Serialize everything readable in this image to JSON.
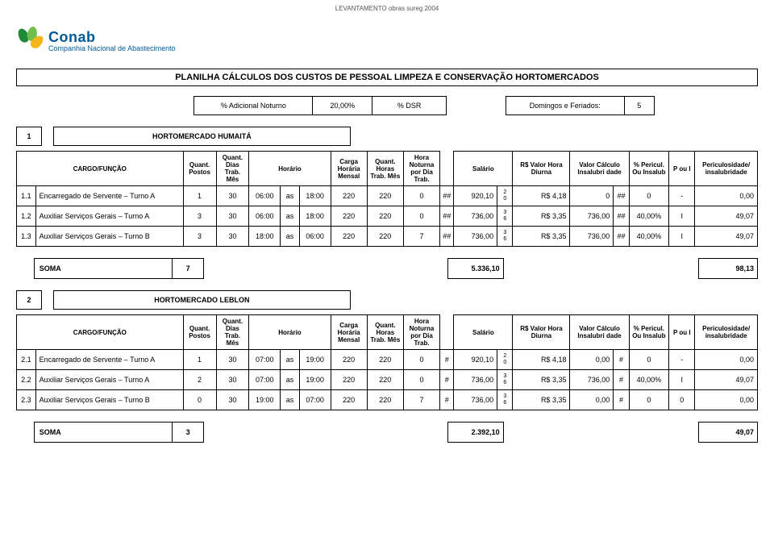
{
  "top_header": "LEVANTAMENTO obras sureg 2004",
  "brand": {
    "name": "Conab",
    "sub": "Companhia Nacional de Abastecimento"
  },
  "title": "PLANILHA CÁLCULOS DOS CUSTOS DE PESSOAL LIMPEZA E CONSERVAÇÃO HORTOMERCADOS",
  "meta": {
    "adicional_noturno_label": "% Adicional Noturno",
    "adicional_noturno_value": "20,00%",
    "dsr_label": "% DSR",
    "feriados_label": "Domingos e Feriados:",
    "feriados_value": "5"
  },
  "headers": {
    "cargo": "CARGO/FUNÇÃO",
    "postos": "Quant. Postos",
    "dias": "Quant. Dias Trab. Mês",
    "horario": "Horário",
    "carga": "Carga Horária Mensal",
    "horas": "Quant. Horas Trab. Mês",
    "noturna": "Hora Noturna por Dia Trab.",
    "salario": "Salário",
    "valor_hora": "R$ Valor Hora Diurna",
    "calc_insal": "Valor Cálculo Insalubri dade",
    "pct_insal": "% Pericul. Ou Insalub",
    "poui": "P ou I",
    "peric": "Periculosidade/ insalubridade"
  },
  "blocks": [
    {
      "idx": "1",
      "name": "HORTOMERCADO HUMAITÁ",
      "rows": [
        {
          "num": "1.1",
          "cargo": "Encarregado de Servente – Turno A",
          "postos": "1",
          "dias": "30",
          "h1": "06:00",
          "as": "as",
          "h2": "18:00",
          "carga": "220",
          "horas": "220",
          "noturna": "0",
          "mark1": "##",
          "salario": "920,10",
          "frac": "2 0",
          "vh": "R$ 4,18",
          "calc": "0",
          "mark2": "##",
          "pct": "0",
          "poui": "-",
          "peric": "0,00"
        },
        {
          "num": "1.2",
          "cargo": "Auxiliar Serviços Gerais – Turno A",
          "postos": "3",
          "dias": "30",
          "h1": "06:00",
          "as": "as",
          "h2": "18:00",
          "carga": "220",
          "horas": "220",
          "noturna": "0",
          "mark1": "##",
          "salario": "736,00",
          "frac": "3 6",
          "vh": "R$ 3,35",
          "calc": "736,00",
          "mark2": "##",
          "pct": "40,00%",
          "poui": "I",
          "peric": "49,07"
        },
        {
          "num": "1.3",
          "cargo": "Auxiliar Serviços Gerais – Turno B",
          "postos": "3",
          "dias": "30",
          "h1": "18:00",
          "as": "as",
          "h2": "06:00",
          "carga": "220",
          "horas": "220",
          "noturna": "7",
          "mark1": "##",
          "salario": "736,00",
          "frac": "3 6",
          "vh": "R$ 3,35",
          "calc": "736,00",
          "mark2": "##",
          "pct": "40,00%",
          "poui": "I",
          "peric": "49,07"
        }
      ],
      "soma": {
        "label": "SOMA",
        "postos": "7",
        "salario": "5.336,10",
        "peric": "98,13"
      }
    },
    {
      "idx": "2",
      "name": "HORTOMERCADO LEBLON",
      "rows": [
        {
          "num": "2.1",
          "cargo": "Encarregado de Servente – Turno A",
          "postos": "1",
          "dias": "30",
          "h1": "07:00",
          "as": "as",
          "h2": "19:00",
          "carga": "220",
          "horas": "220",
          "noturna": "0",
          "mark1": "#",
          "salario": "920,10",
          "frac": "2 0",
          "vh": "R$ 4,18",
          "calc": "0,00",
          "mark2": "#",
          "pct": "0",
          "poui": "-",
          "peric": "0,00"
        },
        {
          "num": "2.2",
          "cargo": "Auxiliar Serviços Gerais – Turno A",
          "postos": "2",
          "dias": "30",
          "h1": "07:00",
          "as": "as",
          "h2": "19:00",
          "carga": "220",
          "horas": "220",
          "noturna": "0",
          "mark1": "#",
          "salario": "736,00",
          "frac": "3 6",
          "vh": "R$ 3,35",
          "calc": "736,00",
          "mark2": "#",
          "pct": "40,00%",
          "poui": "I",
          "peric": "49,07"
        },
        {
          "num": "2.3",
          "cargo": "Auxiliar Serviços Gerais – Turno B",
          "postos": "0",
          "dias": "30",
          "h1": "19:00",
          "as": "as",
          "h2": "07:00",
          "carga": "220",
          "horas": "220",
          "noturna": "7",
          "mark1": "#",
          "salario": "736,00",
          "frac": "3 6",
          "vh": "R$ 3,35",
          "calc": "0,00",
          "mark2": "#",
          "pct": "0",
          "poui": "0",
          "peric": "0,00"
        }
      ],
      "soma": {
        "label": "SOMA",
        "postos": "3",
        "salario": "2.392,10",
        "peric": "49,07"
      }
    }
  ]
}
